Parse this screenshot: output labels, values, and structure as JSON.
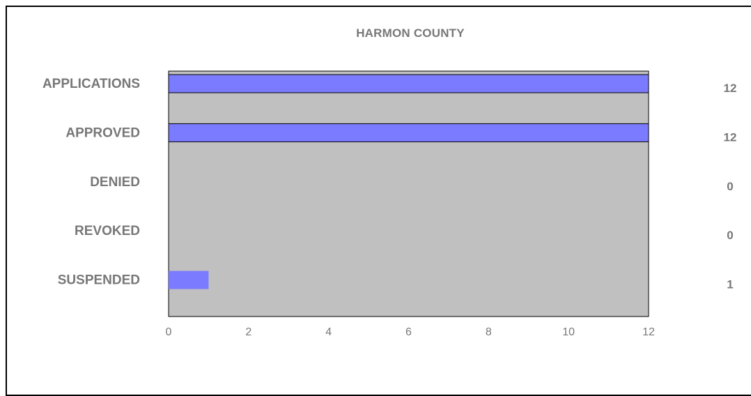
{
  "chart_data": {
    "type": "bar",
    "orientation": "horizontal",
    "title": "HARMON COUNTY",
    "categories": [
      "APPLICATIONS",
      "APPROVED",
      "DENIED",
      "REVOKED",
      "SUSPENDED"
    ],
    "values": [
      12,
      12,
      0,
      0,
      1
    ],
    "value_labels": [
      "12",
      "12",
      "0",
      "0",
      "1"
    ],
    "xlim": [
      0,
      12
    ],
    "x_ticks": [
      "0",
      "2",
      "4",
      "6",
      "8",
      "10",
      "12"
    ],
    "xlabel": "",
    "ylabel": "",
    "grid": false,
    "legend": "none",
    "colors": {
      "bar": "#7b7bff",
      "plot_background": "#c0c0c0",
      "text": "#777777",
      "axis": "#000000"
    }
  }
}
